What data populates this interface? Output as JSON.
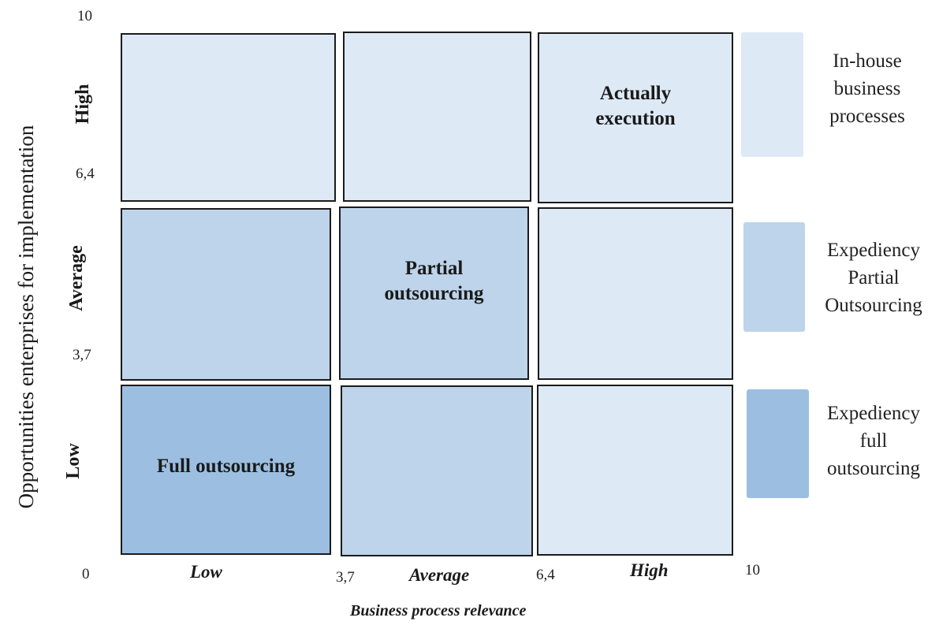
{
  "y_axis": {
    "title": "Opportunities enterprises for implementation",
    "ticks": [
      "10",
      "6,4",
      "3,7",
      "0"
    ],
    "row_labels": [
      "High",
      "Average",
      "Low"
    ]
  },
  "x_axis": {
    "title": "Business process relevance",
    "ticks": [
      "3,7",
      "6,4",
      "10"
    ],
    "col_labels": [
      "Low",
      "Average",
      "High"
    ]
  },
  "cells": {
    "high_high": "Actually execution",
    "avg_avg": "Partial outsourcing",
    "low_low": "Full outsourcing"
  },
  "legend": [
    {
      "text": "In-house business processes",
      "color": "#dde9f5"
    },
    {
      "text": "Expediency Partial Outsourcing",
      "color": "#bdd4ea"
    },
    {
      "text": "Expediency full outsourcing",
      "color": "#9cbfe1"
    }
  ]
}
